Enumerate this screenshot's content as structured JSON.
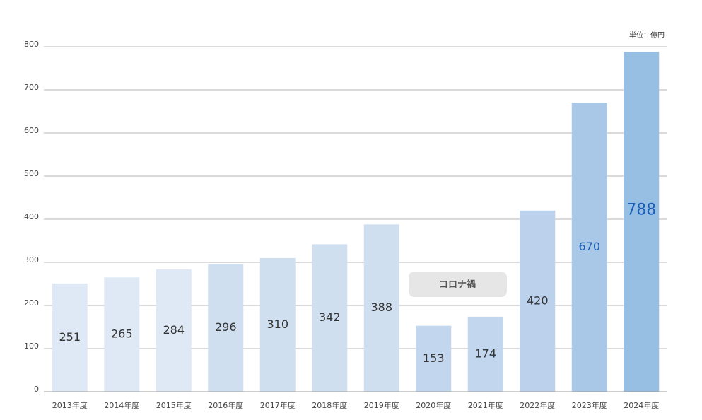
{
  "chart_data": {
    "type": "bar",
    "unit_label": "単位：億円",
    "annotation": "コロナ禍",
    "categories": [
      "2013年度",
      "2014年度",
      "2015年度",
      "2016年度",
      "2017年度",
      "2018年度",
      "2019年度",
      "2020年度",
      "2021年度",
      "2022年度",
      "2023年度",
      "2024年度"
    ],
    "values": [
      251,
      265,
      284,
      296,
      310,
      342,
      388,
      153,
      174,
      420,
      670,
      788
    ],
    "colors": [
      "#dfe8f5",
      "#dfe8f5",
      "#dfe8f5",
      "#cfdff0",
      "#cfdff0",
      "#cfdff0",
      "#cfdff0",
      "#c2d6ee",
      "#c2d6ee",
      "#bcd1eb",
      "#a9c8e8",
      "#97bfe4"
    ],
    "label_colors": [
      "#333333",
      "#333333",
      "#333333",
      "#333333",
      "#333333",
      "#333333",
      "#333333",
      "#333333",
      "#333333",
      "#333333",
      "#1a5fb4",
      "#1a5fb4"
    ],
    "ylim": [
      0,
      800
    ],
    "yticks": [
      0,
      100,
      200,
      300,
      400,
      500,
      600,
      700,
      800
    ],
    "grid": true
  }
}
